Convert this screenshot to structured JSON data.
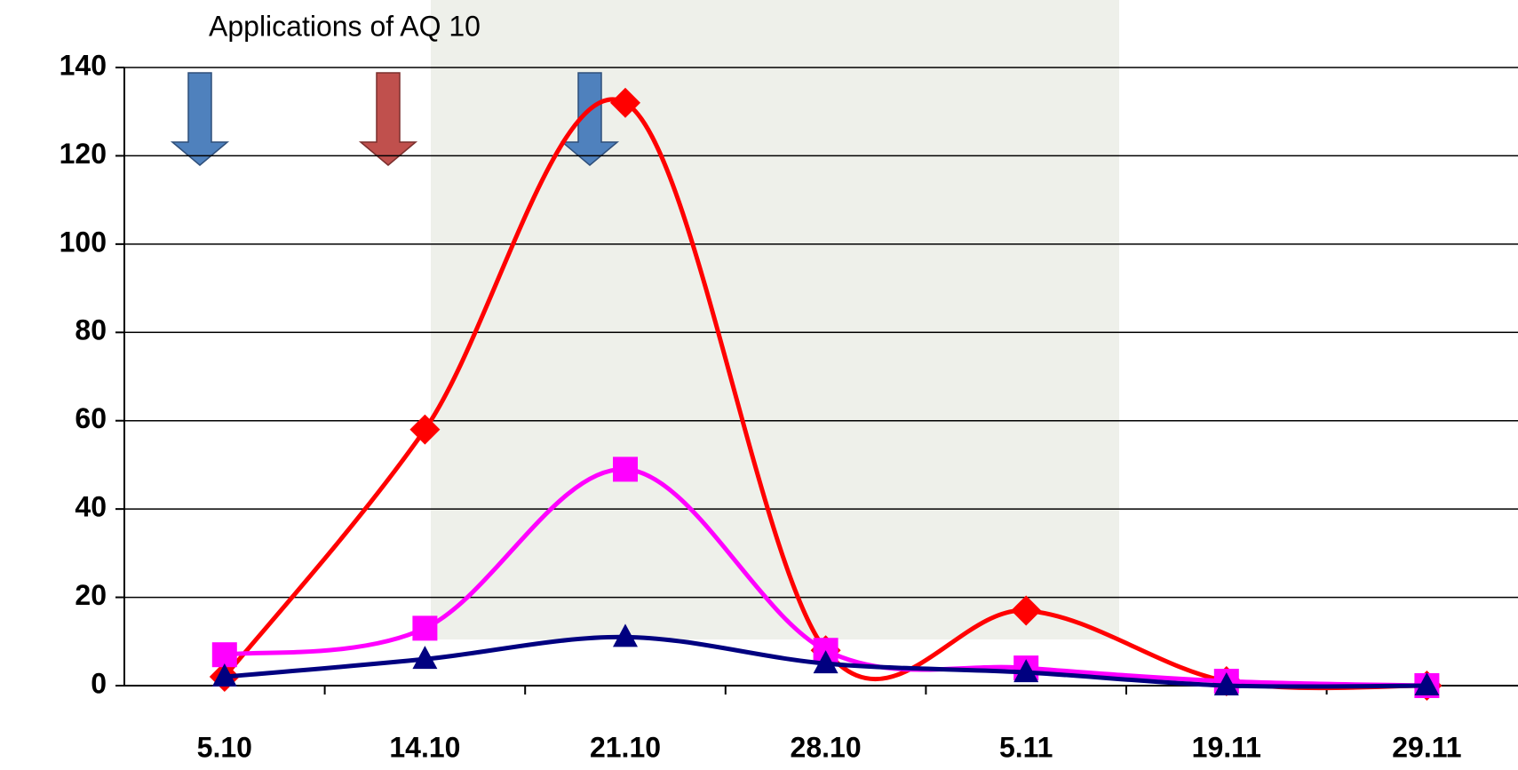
{
  "chart_data": {
    "type": "line",
    "annotation": "Applications of AQ 10",
    "categories": [
      "5.10",
      "14.10",
      "21.10",
      "28.10",
      "5.11",
      "19.11",
      "29.11"
    ],
    "series": [
      {
        "color": "#ff0000",
        "marker": "diamond",
        "values": [
          2,
          58,
          132,
          8,
          17,
          1,
          0
        ]
      },
      {
        "color": "#ff00ff",
        "marker": "square",
        "values": [
          7,
          13,
          49,
          8,
          4,
          1,
          0
        ]
      },
      {
        "color": "#000080",
        "marker": "triangle",
        "values": [
          2,
          6,
          11,
          5,
          3,
          0,
          0
        ]
      }
    ],
    "ylim": [
      0,
      140
    ],
    "yticks": [
      0,
      20,
      40,
      60,
      80,
      100,
      120,
      140
    ],
    "grid": true,
    "smooth": true
  }
}
